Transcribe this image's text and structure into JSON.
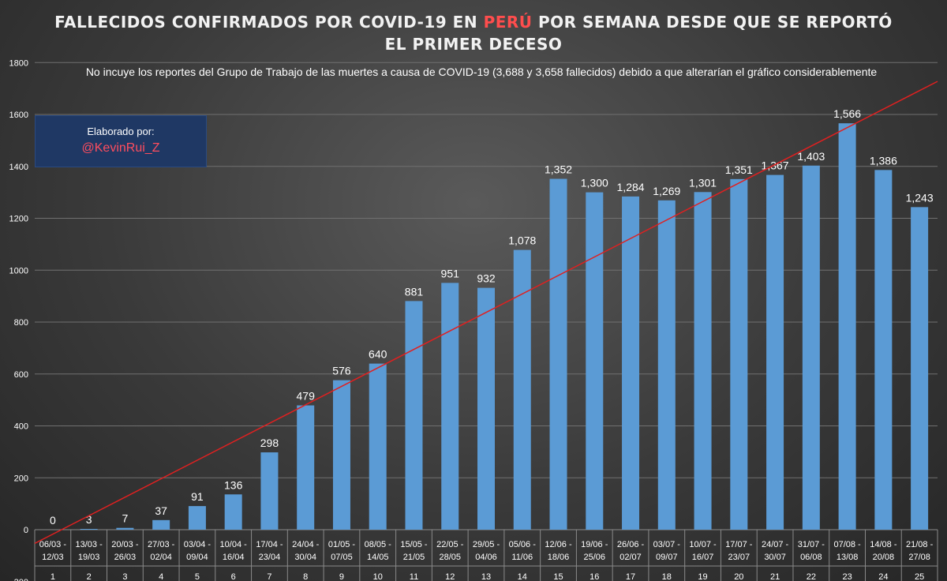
{
  "title": {
    "line1_pre": "FALLECIDOS CONFIRMADOS POR COVID-19 EN ",
    "line1_accent": "PERÚ",
    "line1_post": " POR SEMANA DESDE QUE SE REPORTÓ",
    "line2": "EL PRIMER DECESO"
  },
  "subtitle": "No incuye los reportes del Grupo de Trabajo de las muertes a causa de COVID-19 (3,688 y 3,658 fallecidos) debido a que alterarían el gráfico considerablemente",
  "credit": {
    "label": "Elaborado por:",
    "handle": "@KevinRui_Z"
  },
  "colors": {
    "bar": "#5b9bd5",
    "trendline": "#e02020",
    "accent": "#ff4d4d",
    "credit_box": "#1f3864"
  },
  "chart_data": {
    "type": "bar",
    "categories": [
      [
        "06/03 -",
        "12/03"
      ],
      [
        "13/03 -",
        "19/03"
      ],
      [
        "20/03 -",
        "26/03"
      ],
      [
        "27/03 -",
        "02/04"
      ],
      [
        "03/04 -",
        "09/04"
      ],
      [
        "10/04 -",
        "16/04"
      ],
      [
        "17/04 -",
        "23/04"
      ],
      [
        "24/04 -",
        "30/04"
      ],
      [
        "01/05 -",
        "07/05"
      ],
      [
        "08/05 -",
        "14/05"
      ],
      [
        "15/05 -",
        "21/05"
      ],
      [
        "22/05 -",
        "28/05"
      ],
      [
        "29/05 -",
        "04/06"
      ],
      [
        "05/06 -",
        "11/06"
      ],
      [
        "12/06 -",
        "18/06"
      ],
      [
        "19/06 -",
        "25/06"
      ],
      [
        "26/06 -",
        "02/07"
      ],
      [
        "03/07 -",
        "09/07"
      ],
      [
        "10/07 -",
        "16/07"
      ],
      [
        "17/07 -",
        "23/07"
      ],
      [
        "24/07 -",
        "30/07"
      ],
      [
        "31/07 -",
        "06/08"
      ],
      [
        "07/08 -",
        "13/08"
      ],
      [
        "14/08 -",
        "20/08"
      ],
      [
        "21/08 -",
        "27/08"
      ]
    ],
    "weeks": [
      "1",
      "2",
      "3",
      "4",
      "5",
      "6",
      "7",
      "8",
      "9",
      "10",
      "11",
      "12",
      "13",
      "14",
      "15",
      "16",
      "17",
      "18",
      "19",
      "20",
      "21",
      "22",
      "23",
      "24",
      "25"
    ],
    "values": [
      0,
      3,
      7,
      37,
      91,
      136,
      298,
      479,
      576,
      640,
      881,
      951,
      932,
      1078,
      1352,
      1300,
      1284,
      1269,
      1301,
      1351,
      1367,
      1403,
      1566,
      1386,
      1243
    ],
    "value_labels": [
      "0",
      "3",
      "7",
      "37",
      "91",
      "136",
      "298",
      "479",
      "576",
      "640",
      "881",
      "951",
      "932",
      "1,078",
      "1,352",
      "1,300",
      "1,284",
      "1,269",
      "1,301",
      "1,351",
      "1,367",
      "1,403",
      "1,566",
      "1,386",
      "1,243"
    ],
    "yticks": [
      "-200",
      "0",
      "200",
      "400",
      "600",
      "800",
      "1000",
      "1200",
      "1400",
      "1600",
      "1800"
    ],
    "ylim": [
      -200,
      1800
    ],
    "grid": true,
    "trendline": {
      "type": "linear"
    }
  }
}
